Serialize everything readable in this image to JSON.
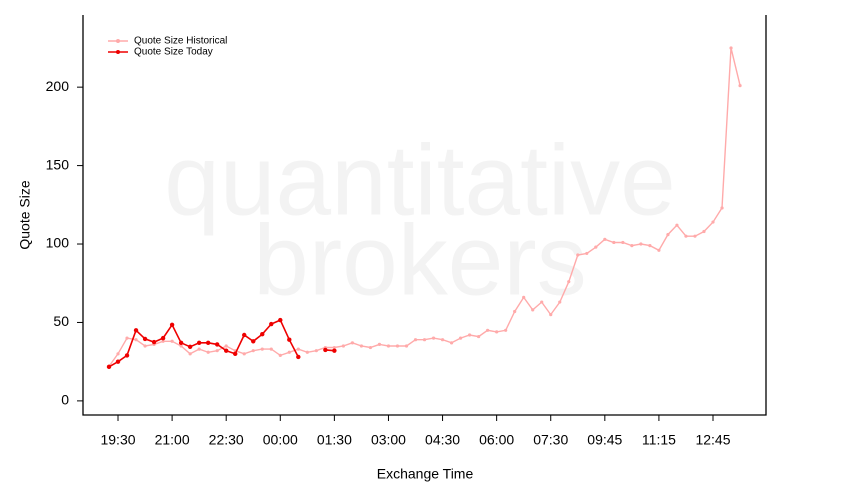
{
  "chart_data": {
    "type": "line",
    "watermark": [
      "quantitative",
      "brokers"
    ],
    "xlabel": "Exchange Time",
    "ylabel": "Quote Size",
    "categories": [
      null,
      "19:30",
      null,
      null,
      null,
      null,
      null,
      "21:00",
      null,
      null,
      null,
      null,
      null,
      "22:30",
      null,
      null,
      null,
      null,
      null,
      "00:00",
      null,
      null,
      null,
      null,
      null,
      "01:30",
      null,
      null,
      null,
      null,
      null,
      "03:00",
      null,
      null,
      null,
      null,
      null,
      "04:30",
      null,
      null,
      null,
      null,
      null,
      "06:00",
      null,
      null,
      null,
      null,
      null,
      "07:30",
      null,
      null,
      null,
      null,
      null,
      "09:45",
      null,
      null,
      null,
      null,
      null,
      "11:15",
      null,
      null,
      null,
      null,
      null,
      "12:45",
      null,
      null,
      null
    ],
    "series": [
      {
        "name": "Quote Size Historical",
        "color": "#ffaaaa",
        "values": [
          22,
          30,
          40,
          39,
          35,
          36,
          38,
          38,
          35,
          30,
          33,
          31,
          32,
          35,
          32,
          30,
          32,
          33,
          33,
          29,
          31,
          33,
          31,
          32,
          34,
          34,
          35,
          37,
          35,
          34,
          36,
          35,
          35,
          35,
          39,
          39,
          40,
          39,
          37,
          40,
          42,
          41,
          45,
          44,
          45,
          57,
          66,
          58,
          63,
          55,
          63,
          76,
          93,
          94,
          98,
          103,
          101,
          101,
          99,
          100,
          99,
          96,
          106,
          112,
          105,
          105,
          108,
          114,
          123,
          225,
          201
        ]
      },
      {
        "name": "Quote Size Today",
        "color": "#ee0000",
        "values": [
          21.7,
          25,
          29,
          45,
          39.5,
          37.5,
          40,
          48.5,
          37,
          34.5,
          37,
          37,
          36,
          32,
          30,
          42,
          38,
          42.5,
          49,
          51.5,
          39,
          28,
          null,
          null,
          32.5,
          32,
          null,
          null,
          null,
          null,
          null,
          null,
          null,
          null,
          null,
          null,
          null,
          null,
          null,
          null,
          null,
          null,
          null,
          null,
          null,
          null,
          null,
          null,
          null,
          null,
          null,
          null,
          null,
          null,
          null,
          null,
          null,
          null,
          null,
          null,
          null,
          null,
          null,
          null,
          null,
          null,
          null,
          null,
          null,
          null,
          null
        ]
      }
    ],
    "ylim": [
      -9,
      246
    ],
    "yticks": [
      0,
      50,
      100,
      150,
      200
    ],
    "legend": "top-left"
  }
}
